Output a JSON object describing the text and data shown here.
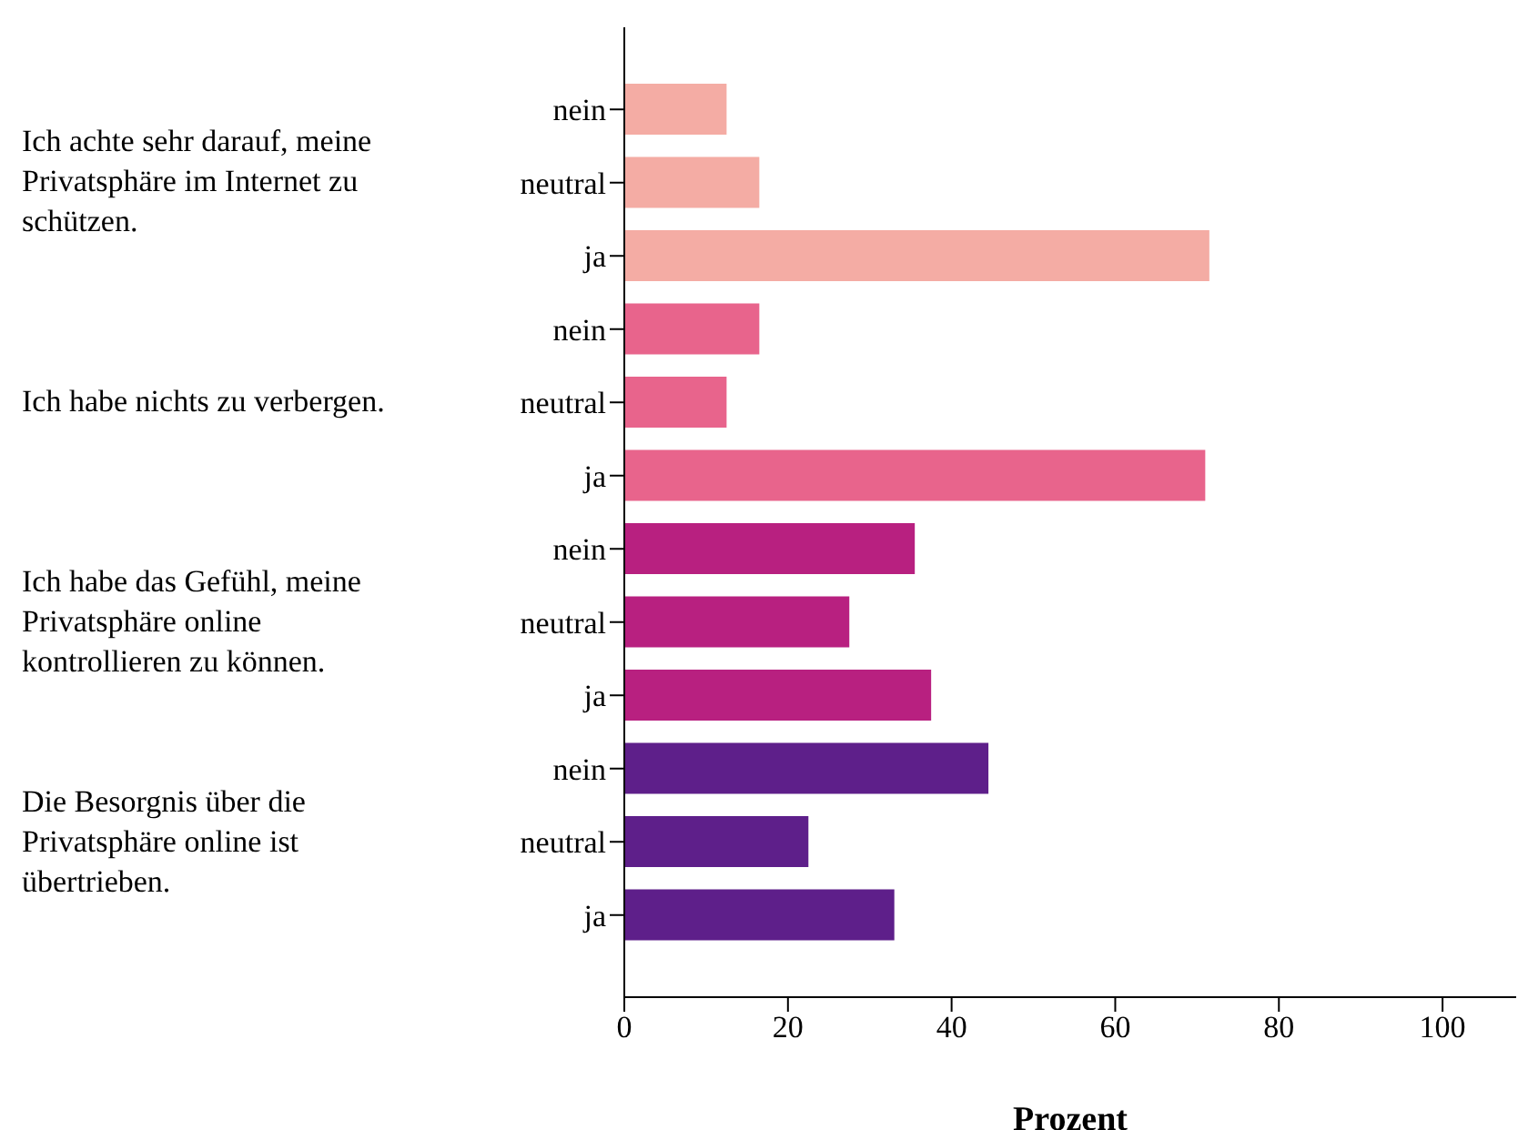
{
  "chart_data": {
    "type": "bar",
    "orientation": "horizontal",
    "xlabel": "Prozent",
    "categories": [
      "nein",
      "neutral",
      "ja",
      "nein",
      "neutral",
      "ja",
      "nein",
      "neutral",
      "ja",
      "nein",
      "neutral",
      "ja"
    ],
    "values": [
      12.5,
      16.5,
      71.5,
      16.5,
      12.5,
      71,
      35.5,
      27.5,
      37.5,
      44.5,
      22.5,
      33
    ],
    "colors": [
      "#f4aca4",
      "#f4aca4",
      "#f4aca4",
      "#e8648c",
      "#e8648c",
      "#e8648c",
      "#b82080",
      "#b82080",
      "#b82080",
      "#5e1f8a",
      "#5e1f8a",
      "#5e1f8a"
    ],
    "xlim": [
      0,
      109
    ],
    "xticks": [
      0,
      20,
      40,
      60,
      80,
      100
    ],
    "grid": false,
    "legend": false,
    "annotations": [
      "Ich achte sehr darauf, meine Privatsphäre im Internet zu schützen.",
      "Ich habe nichts zu verbergen.",
      "Ich habe das Gefühl, meine Privatsphäre online kontrollieren zu können.",
      "Die Besorgnis über die Privatsphäre online ist übertrieben."
    ]
  }
}
